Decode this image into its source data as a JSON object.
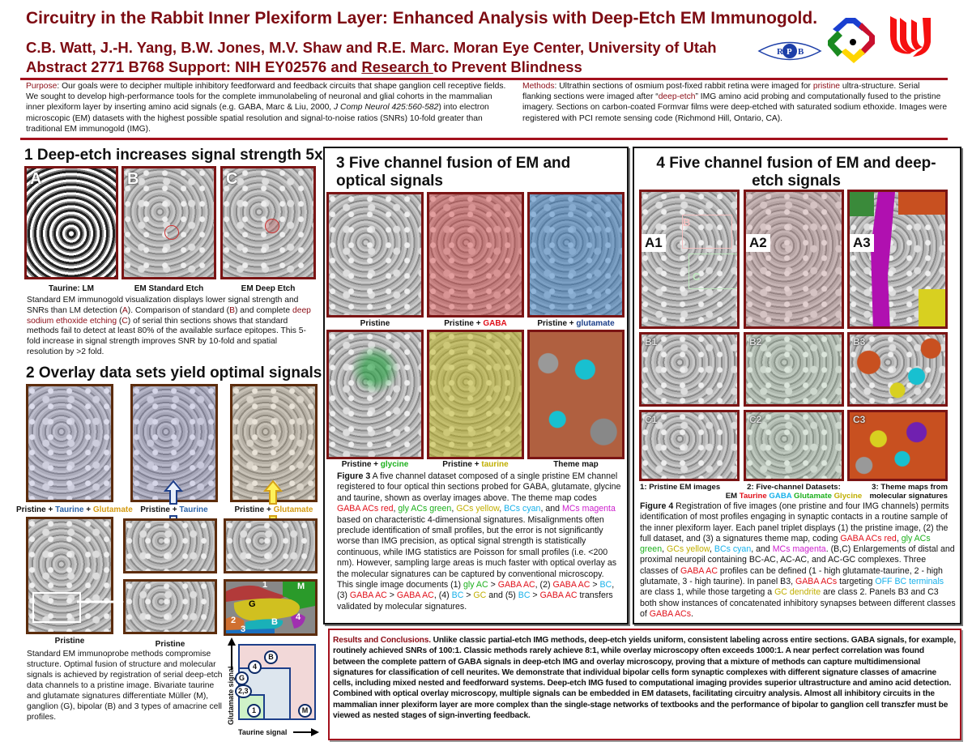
{
  "colors": {
    "maroon": "#8b0d16",
    "red": "#e0101a",
    "green": "#1db01d",
    "yellow": "#c0ae00",
    "cyan": "#16b0ea",
    "magenta": "#cc1fcc",
    "taurine": "#2a62a8",
    "glutamate": "#d49a10",
    "navy": "#1d3f8a"
  },
  "header": {
    "title": "Circuitry in the Rabbit Inner Plexiform Layer: Enhanced Analysis with Deep-Etch EM Immunogold.",
    "authors": "C.B. Watt, J.-H. Yang, B.W. Jones, M.V. Shaw and R.E. Marc.  Moran Eye Center, University of Utah",
    "abstract_prefix": "Abstract 2771  B768   Support: NIH EY02576 and ",
    "abstract_link": "Research ",
    "abstract_suffix": "to Prevent Blindness",
    "logos": {
      "rpb": "RPB",
      "rpb_letters": [
        "R",
        "P",
        "B"
      ]
    }
  },
  "purpose": [
    [
      "Purpose",
      "maroon"
    ],
    [
      ": Our goals were to decipher multiple inhibitory feedforward and feedback circuits that shape ganglion cell receptive fields.  We sought to develop high-performance tools for the complete immunolabeling of neuronal and glial cohorts in the mammalian inner plexiform layer by inserting amino acid signals (e.g. GABA, Marc & Liu, 2000, "
    ],
    [
      "J Comp Neurol 425:560-582",
      "italic"
    ],
    [
      ") into electron microscopic (EM) datasets with the highest possible spatial resolution and signal-to-noise ratios (SNRs) 10-fold greater than traditional EM immunogold (IMG)."
    ]
  ],
  "methods": [
    [
      "Methods",
      "maroon"
    ],
    [
      ": Ultrathin sections of osmium post-fixed rabbit retina were imaged for "
    ],
    [
      "pristine",
      "maroon"
    ],
    [
      " ultra-structure. Serial flanking sections were imaged after “"
    ],
    [
      "deep-etch",
      "maroon"
    ],
    [
      "” IMG amino acid probing and computationally fused to the pristine imagery.  Sections on carbon-coated Formvar films were deep-etched with saturated sodium ethoxide. Images were registered with PCI remote sensing code (Richmond Hill, Ontario, CA)."
    ]
  ],
  "section1": {
    "title": "1  Deep-etch increases signal strength 5x",
    "panels": [
      {
        "letter": "A",
        "caption": "Taurine: LM"
      },
      {
        "letter": "B",
        "caption": "EM Standard Etch"
      },
      {
        "letter": "C",
        "caption": "EM Deep Etch"
      }
    ],
    "text": [
      [
        "Standard EM immunogold visualization displays lower signal strength and SNRs than LM detection ("
      ],
      [
        "A",
        "maroon"
      ],
      [
        "). Comparison of standard ("
      ],
      [
        "B",
        "maroon"
      ],
      [
        ") and complete "
      ],
      [
        "deep sodium ethoxide etching",
        "maroon"
      ],
      [
        " ("
      ],
      [
        "C",
        "maroon"
      ],
      [
        ") of serial thin sections shows that standard methods fail to detect at least 80% of the available surface epitopes. This 5-fold increase in signal strength improves SNR by 10-fold and spatial resolution by >2 fold."
      ]
    ]
  },
  "section2": {
    "title": "2 Overlay data sets yield optimal signals",
    "labels": [
      [
        [
          "Pristine + "
        ],
        [
          "Taurine",
          "taurine"
        ],
        [
          " + "
        ],
        [
          "Glutamate",
          "glutamate"
        ]
      ],
      [
        [
          "Pristine + "
        ],
        [
          "Taurine",
          "taurine"
        ]
      ],
      [
        [
          "Pristine + "
        ],
        [
          "Glutamate",
          "glutamate"
        ]
      ]
    ],
    "pristine_labels": [
      "Pristine",
      "Pristine"
    ],
    "theme_labels": [
      "1",
      "M",
      "G",
      "2",
      "4",
      "B",
      "3"
    ],
    "text": "Standard EM immunoprobe methods compromise structure. Optimal fusion of structure and molecular signals is achieved by registration of serial deep-etch data channels to a pristine image. Bivariate taurine and glutamate signatures differentiate Müller (M), ganglion (G), bipolar (B) and 3 types of amacrine cell profiles.",
    "diagram": {
      "ylabel": "Glutamate signal",
      "xlabel": "Taurine signal",
      "classes": [
        "B",
        "4",
        "G",
        "2,3",
        "1",
        "M"
      ]
    }
  },
  "section3": {
    "title": "3 Five channel fusion of EM and optical signals",
    "labels": [
      [
        [
          "Pristine"
        ]
      ],
      [
        [
          "Pristine + "
        ],
        [
          "GABA",
          "red"
        ]
      ],
      [
        [
          "Pristine + "
        ],
        [
          "glutamate",
          "navy"
        ]
      ],
      [
        [
          "Pristine + "
        ],
        [
          "glycine",
          "green"
        ]
      ],
      [
        [
          "Pristine + "
        ],
        [
          "taurine",
          "yellow"
        ]
      ],
      [
        [
          "Theme map"
        ]
      ]
    ],
    "caption": [
      [
        "Figure 3",
        "bold"
      ],
      [
        " A five channel dataset composed of a single pristine EM channel registered to four optical thin sections probed for GABA, glutamate, glycine and taurine, shown as overlay images above. The theme map codes "
      ],
      [
        "GABA ACs red",
        "red"
      ],
      [
        ", "
      ],
      [
        "gly ACs green",
        "green"
      ],
      [
        ", "
      ],
      [
        "GCs yellow",
        "yellow"
      ],
      [
        ", "
      ],
      [
        "BCs cyan",
        "cyan"
      ],
      [
        ", and "
      ],
      [
        "MCs magenta",
        "magenta"
      ],
      [
        " based on characteristic 4-dimensional signatures. Misalignments often preclude identification of small profiles, but the error is not significantly worse than IMG precision, as optical signal strength is statistically continuous, while IMG statistics are Poisson for small profiles (i.e. <200 nm). However, sampling large areas is much faster with optical overlay as the molecular signatures can be captured by conventional microscopy. This single image documents (1) "
      ],
      [
        "gly AC",
        "green"
      ],
      [
        " > "
      ],
      [
        "GABA AC",
        "red"
      ],
      [
        ",  (2) "
      ],
      [
        "GABA AC",
        "red"
      ],
      [
        " > "
      ],
      [
        "BC",
        "cyan"
      ],
      [
        ", (3) "
      ],
      [
        "GABA AC",
        "red"
      ],
      [
        " > "
      ],
      [
        "GABA AC",
        "red"
      ],
      [
        ",  (4) "
      ],
      [
        "BC",
        "cyan"
      ],
      [
        " > "
      ],
      [
        "GC",
        "yellow"
      ],
      [
        " and  (5) "
      ],
      [
        "BC",
        "cyan"
      ],
      [
        " > "
      ],
      [
        "GABA AC",
        "red"
      ],
      [
        " transfers validated by molecular signatures."
      ]
    ]
  },
  "section4": {
    "title": "4 Five channel fusion of EM and deep-etch signals",
    "panel_labels": [
      "A1",
      "A2",
      "A3",
      "B1",
      "B2",
      "B3",
      "C1",
      "C2",
      "C3"
    ],
    "inset_labels": [
      "B",
      "C"
    ],
    "col1": "1: Pristine EM images",
    "col2": "2: Five-channel Datasets:",
    "col2_channels": [
      [
        "EM "
      ],
      [
        "Taurine",
        "red"
      ],
      [
        " "
      ],
      [
        "GABA",
        "cyan"
      ],
      [
        " "
      ],
      [
        "Glutamate",
        "green"
      ],
      [
        " "
      ],
      [
        "Glycine",
        "yellow"
      ]
    ],
    "col3": "3: Theme maps from molecular signatures",
    "caption": [
      [
        "Figure 4",
        "bold"
      ],
      [
        " Registration of five images (one pristine and four IMG channels) permits identification of most profiles engaging in synaptic contacts in a routine sample of the inner plexiform layer.  Each panel triplet displays (1) the pristine image, (2) the full dataset, and (3) a signatures theme map, coding "
      ],
      [
        "GABA ACs red",
        "red"
      ],
      [
        ", "
      ],
      [
        "gly ACs green",
        "green"
      ],
      [
        ", "
      ],
      [
        "GCs yellow",
        "yellow"
      ],
      [
        ", "
      ],
      [
        "BCs cyan",
        "cyan"
      ],
      [
        ", and "
      ],
      [
        "MCs magenta",
        "magenta"
      ],
      [
        ". (B,C) Enlargements of distal and proximal neuropil containing BC-AC, AC-AC, and AC-GC complexes. Three classes of "
      ],
      [
        "GABA AC",
        "red"
      ],
      [
        " profiles can be defined (1 - high glutamate-taurine, 2 - high glutamate, 3 - high taurine).  In panel B3, "
      ],
      [
        "GABA ACs",
        "red"
      ],
      [
        " targeting "
      ],
      [
        "OFF BC terminals",
        "cyan"
      ],
      [
        " are class 1, while those targeting a "
      ],
      [
        "GC dendrite",
        "yellow"
      ],
      [
        " are class 2. Panels B3 and C3 both show instances of concatenated inhibitory synapses between different classes of "
      ],
      [
        "GABA ACs",
        "red"
      ],
      [
        "."
      ]
    ]
  },
  "results": [
    [
      "Results and Conclusions.",
      "maroon"
    ],
    [
      "  Unlike classic partial-etch IMG methods, deep-etch yields uniform, consistent labeling across entire sections.  GABA signals, for example, routinely achieved SNRs of 100:1.  Classic methods rarely achieve 8:1, while overlay microscopy often exceeds 1000:1.  A near perfect correlation was found between the complete pattern of GABA signals in deep-etch IMG and overlay microscopy, proving that a mixture of methods can capture multidimensional signatures for classification of cell neurites.  We demonstrate that individual bipolar cells form synaptic complexes with different signature classes of amacrine cells, including mixed nested and feedforward systems. Deep-etch IMG fused to computational imaging provides superior ultrastructure and amino acid detection.  Combined with optical overlay microscopy, multiple signals can be embedded in EM datasets, facilitating circuitry analysis.  Almost all inhibitory circuits in the mammalian inner plexiform layer are more complex than the single-stage networks of textbooks and the performance of bipolar to ganglion cell transzfer must be viewed as nested stages of sign-inverting feedback."
    ]
  ]
}
